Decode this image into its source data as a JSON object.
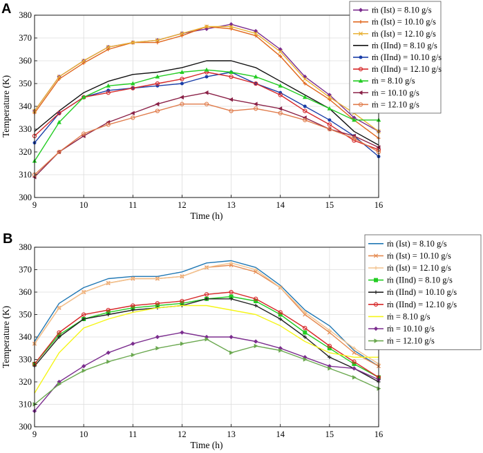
{
  "chart_data": [
    {
      "panel": "A",
      "type": "line",
      "xlabel": "Time (h)",
      "ylabel": "Temperature (K)",
      "xlim": [
        9,
        16
      ],
      "ylim": [
        300,
        380
      ],
      "xticks": [
        9,
        10,
        11,
        12,
        13,
        14,
        15,
        16
      ],
      "yticks": [
        300,
        310,
        320,
        330,
        340,
        350,
        360,
        370,
        380
      ],
      "grid": true,
      "legend_position": "top-right",
      "x": [
        9,
        9.5,
        10,
        10.5,
        11,
        11.5,
        12,
        12.5,
        13,
        13.5,
        14,
        14.5,
        15,
        15.5,
        16
      ],
      "series": [
        {
          "name": "ṁ (Ist) = 8.10 g/s",
          "color": "#7b2d8e",
          "marker": "diamond",
          "values": [
            338,
            353,
            360,
            366,
            368,
            369,
            372,
            374,
            376,
            373,
            365,
            353,
            345,
            335,
            329
          ]
        },
        {
          "name": "ṁ (Ist) = 10.10 g/s",
          "color": "#e0651a",
          "marker": "plus",
          "values": [
            337,
            352,
            359,
            365,
            368,
            368,
            371,
            375,
            374,
            371,
            362,
            350,
            343,
            334,
            326
          ]
        },
        {
          "name": "ṁ (Ist) = 12.10 g/s",
          "color": "#e8b135",
          "marker": "x",
          "values": [
            338,
            353,
            360,
            366,
            368,
            369,
            372,
            375,
            375,
            372,
            364,
            352,
            344,
            337,
            329
          ]
        },
        {
          "name": "ṁ (IInd) = 8.10 g/s",
          "color": "#111111",
          "marker": "none",
          "values": [
            329,
            338,
            346,
            351,
            354,
            355,
            357,
            360,
            360,
            357,
            351,
            345,
            339,
            329,
            323
          ]
        },
        {
          "name": "ṁ (IInd) = 10.10 g/s",
          "color": "#1a3ea8",
          "marker": "dot",
          "values": [
            324,
            337,
            344,
            347,
            348,
            349,
            350,
            353,
            355,
            350,
            346,
            340,
            334,
            327,
            318
          ]
        },
        {
          "name": "ṁ (IInd) = 12.10 g/s",
          "color": "#d62728",
          "marker": "circle",
          "values": [
            327,
            337,
            344,
            346,
            348,
            350,
            352,
            355,
            353,
            350,
            345,
            338,
            332,
            325,
            321
          ]
        },
        {
          "name": "ṁ = 8.10 g/s",
          "color": "#22cc22",
          "marker": "triangle",
          "values": [
            316,
            333,
            344,
            349,
            350,
            353,
            355,
            356,
            355,
            353,
            349,
            344,
            339,
            334,
            334
          ]
        },
        {
          "name": "ṁ = 10.10 g/s",
          "color": "#8b2248",
          "marker": "ltriangle",
          "values": [
            309,
            320,
            327,
            333,
            337,
            341,
            344,
            346,
            343,
            341,
            339,
            335,
            330,
            327,
            322
          ]
        },
        {
          "name": "ṁ = 12.10 g/s",
          "color": "#e07b4a",
          "marker": "circle",
          "values": [
            310,
            320,
            328,
            332,
            335,
            338,
            341,
            341,
            338,
            339,
            337,
            334,
            330,
            326,
            320
          ]
        }
      ]
    },
    {
      "panel": "B",
      "type": "line",
      "xlabel": "Time (h)",
      "ylabel": "Temperature (K)",
      "xlim": [
        9,
        16
      ],
      "ylim": [
        300,
        380
      ],
      "xticks": [
        9,
        10,
        11,
        12,
        13,
        14,
        15,
        16
      ],
      "yticks": [
        300,
        310,
        320,
        330,
        340,
        350,
        360,
        370,
        380
      ],
      "grid": true,
      "legend_position": "top-right",
      "x": [
        9,
        9.5,
        10,
        10.5,
        11,
        11.5,
        12,
        12.5,
        13,
        13.5,
        14,
        14.5,
        15,
        15.5,
        16
      ],
      "series": [
        {
          "name": "ṁ (Ist) = 8.10 g/s",
          "color": "#1f77b4",
          "marker": "none",
          "values": [
            338,
            355,
            362,
            366,
            367,
            367,
            369,
            373,
            374,
            371,
            363,
            352,
            345,
            334,
            327
          ]
        },
        {
          "name": "ṁ (Ist) = 10.10 g/s",
          "color": "#e58a50",
          "marker": "x",
          "values": [
            337,
            353,
            360,
            364,
            366,
            366,
            367,
            371,
            372,
            369,
            362,
            350,
            342,
            333,
            327
          ]
        },
        {
          "name": "ṁ (Ist) = 12.10 g/s",
          "color": "#f2c28e",
          "marker": "plus",
          "values": [
            337,
            353,
            360,
            364,
            366,
            366,
            367,
            371,
            373,
            370,
            362,
            351,
            343,
            335,
            328
          ]
        },
        {
          "name": "ṁ (IInd) = 8.10 g/s",
          "color": "#22cc22",
          "marker": "square",
          "values": [
            328,
            341,
            348,
            351,
            353,
            354,
            355,
            357,
            358,
            356,
            350,
            342,
            335,
            328,
            322
          ]
        },
        {
          "name": "ṁ (IInd) = 10.10 g/s",
          "color": "#222222",
          "marker": "plus",
          "values": [
            327,
            340,
            348,
            350,
            352,
            353,
            354,
            357,
            357,
            354,
            348,
            340,
            331,
            326,
            320
          ]
        },
        {
          "name": "ṁ (IInd) = 12.10 g/s",
          "color": "#d62728",
          "marker": "circle",
          "values": [
            328,
            342,
            350,
            352,
            354,
            355,
            356,
            359,
            360,
            357,
            351,
            344,
            336,
            329,
            322
          ]
        },
        {
          "name": "ṁ = 8.10 g/s",
          "color": "#f5f518",
          "marker": "none",
          "values": [
            315,
            333,
            344,
            348,
            351,
            353,
            354,
            354,
            352,
            350,
            345,
            338,
            333,
            331,
            331
          ]
        },
        {
          "name": "ṁ = 10.10 g/s",
          "color": "#7b2d8e",
          "marker": "diamond",
          "values": [
            307,
            320,
            327,
            333,
            337,
            340,
            342,
            340,
            340,
            338,
            335,
            331,
            327,
            326,
            321
          ]
        },
        {
          "name": "ṁ = 12.10 g/s",
          "color": "#6aa84f",
          "marker": "rtriangle",
          "values": [
            310,
            319,
            325,
            329,
            332,
            335,
            337,
            339,
            333,
            336,
            334,
            330,
            326,
            322,
            317
          ]
        }
      ]
    }
  ]
}
